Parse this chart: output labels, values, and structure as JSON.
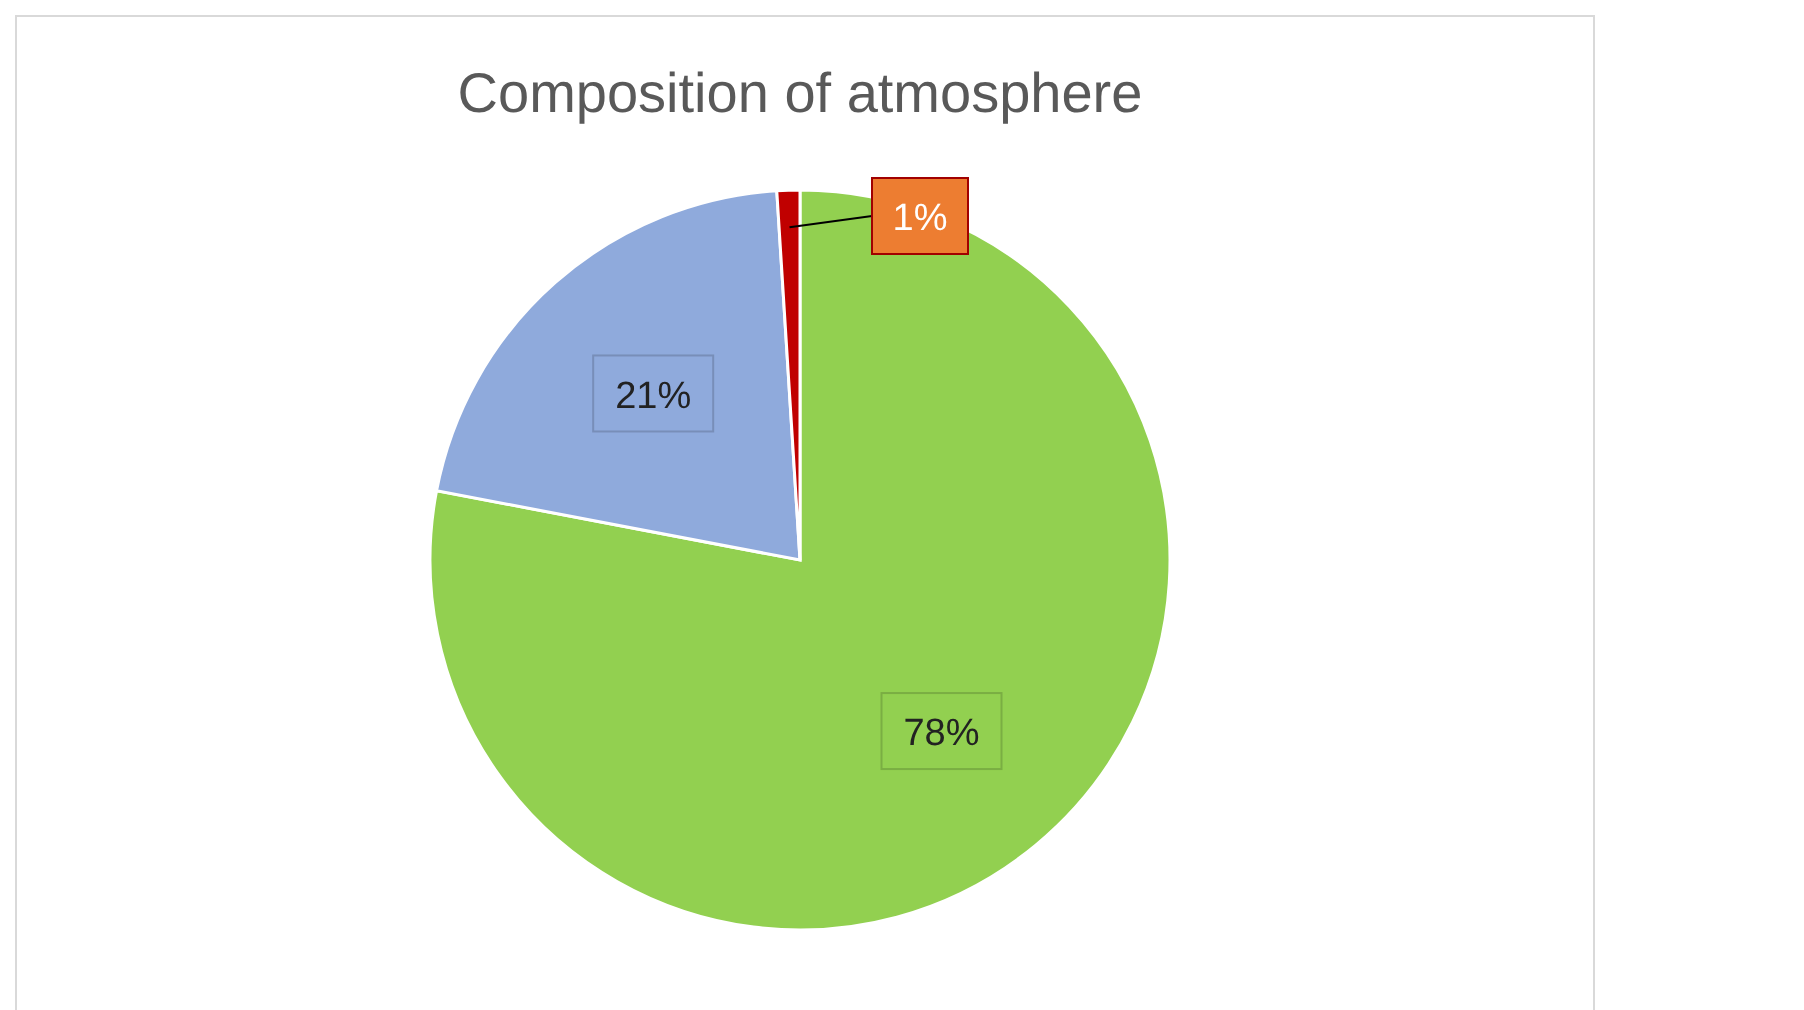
{
  "chart_data": {
    "type": "pie",
    "title": "Composition of atmosphere",
    "categories": [
      null,
      null,
      null
    ],
    "values": [
      78,
      21,
      1
    ],
    "colors": [
      "#92d050",
      "#8faadc",
      "#c00000"
    ],
    "value_labels": [
      "78%",
      "21%",
      "1%"
    ]
  }
}
